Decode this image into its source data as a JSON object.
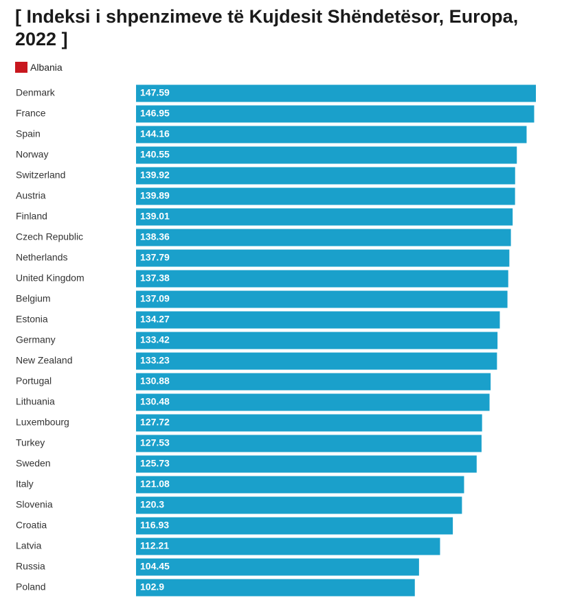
{
  "chart_data": {
    "type": "bar",
    "orientation": "horizontal",
    "title": "[ Indeksi i shpenzimeve të Kujdesit Shëndetësor, Europa, 2022 ]",
    "legend": [
      {
        "name": "Albania",
        "color": "#c8171e"
      }
    ],
    "categories": [
      "Denmark",
      "France",
      "Spain",
      "Norway",
      "Switzerland",
      "Austria",
      "Finland",
      "Czech Republic",
      "Netherlands",
      "United Kingdom",
      "Belgium",
      "Estonia",
      "Germany",
      "New Zealand",
      "Portugal",
      "Lithuania",
      "Luxembourg",
      "Turkey",
      "Sweden",
      "Italy",
      "Slovenia",
      "Croatia",
      "Latvia",
      "Russia",
      "Poland"
    ],
    "values": [
      147.59,
      146.95,
      144.16,
      140.55,
      139.92,
      139.89,
      139.01,
      138.36,
      137.79,
      137.38,
      137.09,
      134.27,
      133.42,
      133.23,
      130.88,
      130.48,
      127.72,
      127.53,
      125.73,
      121.08,
      120.3,
      116.93,
      112.21,
      104.45,
      102.9
    ],
    "color": "#1aa0cb",
    "xlim": [
      0,
      147.59
    ]
  }
}
